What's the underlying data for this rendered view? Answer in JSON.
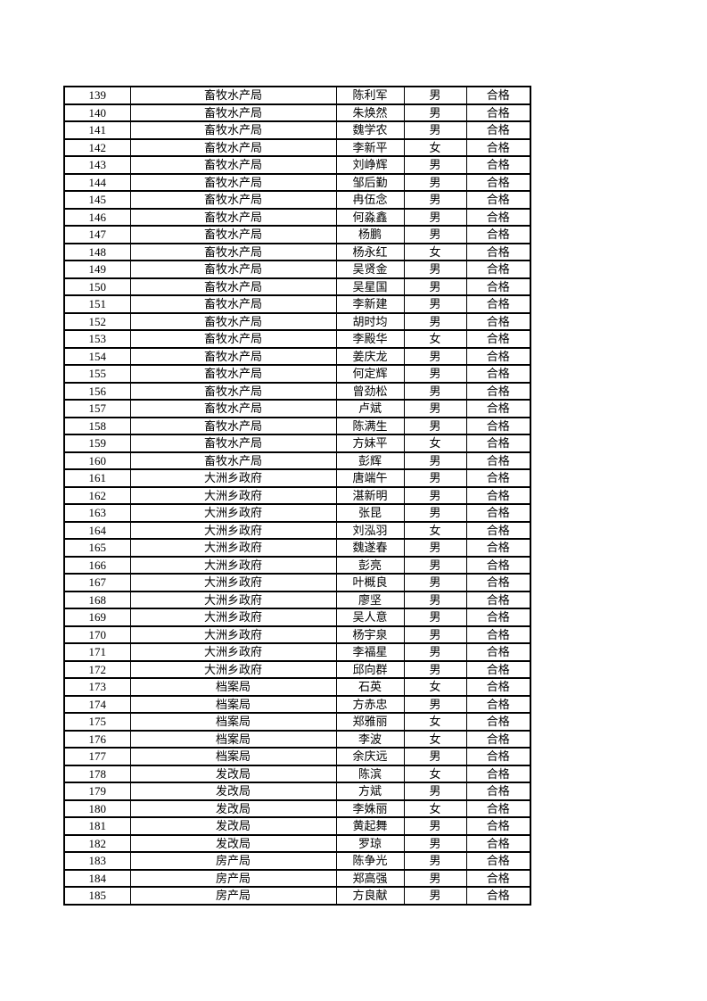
{
  "page": {
    "background_color": "#ffffff",
    "border_color": "#000000",
    "text_color": "#000000"
  },
  "table": {
    "columns": [
      "index",
      "department",
      "name",
      "gender",
      "result"
    ],
    "rows": [
      [
        "139",
        "畜牧水产局",
        "陈利军",
        "男",
        "合格"
      ],
      [
        "140",
        "畜牧水产局",
        "朱焕然",
        "男",
        "合格"
      ],
      [
        "141",
        "畜牧水产局",
        "魏学农",
        "男",
        "合格"
      ],
      [
        "142",
        "畜牧水产局",
        "李新平",
        "女",
        "合格"
      ],
      [
        "143",
        "畜牧水产局",
        "刘峥辉",
        "男",
        "合格"
      ],
      [
        "144",
        "畜牧水产局",
        "邹后勤",
        "男",
        "合格"
      ],
      [
        "145",
        "畜牧水产局",
        "冉伍念",
        "男",
        "合格"
      ],
      [
        "146",
        "畜牧水产局",
        "何淼鑫",
        "男",
        "合格"
      ],
      [
        "147",
        "畜牧水产局",
        "杨鹏",
        "男",
        "合格"
      ],
      [
        "148",
        "畜牧水产局",
        "杨永红",
        "女",
        "合格"
      ],
      [
        "149",
        "畜牧水产局",
        "吴贤金",
        "男",
        "合格"
      ],
      [
        "150",
        "畜牧水产局",
        "吴星国",
        "男",
        "合格"
      ],
      [
        "151",
        "畜牧水产局",
        "李新建",
        "男",
        "合格"
      ],
      [
        "152",
        "畜牧水产局",
        "胡时均",
        "男",
        "合格"
      ],
      [
        "153",
        "畜牧水产局",
        "李殿华",
        "女",
        "合格"
      ],
      [
        "154",
        "畜牧水产局",
        "姜庆龙",
        "男",
        "合格"
      ],
      [
        "155",
        "畜牧水产局",
        "何定辉",
        "男",
        "合格"
      ],
      [
        "156",
        "畜牧水产局",
        "曾劲松",
        "男",
        "合格"
      ],
      [
        "157",
        "畜牧水产局",
        "卢斌",
        "男",
        "合格"
      ],
      [
        "158",
        "畜牧水产局",
        "陈满生",
        "男",
        "合格"
      ],
      [
        "159",
        "畜牧水产局",
        "方妹平",
        "女",
        "合格"
      ],
      [
        "160",
        "畜牧水产局",
        "彭辉",
        "男",
        "合格"
      ],
      [
        "161",
        "大洲乡政府",
        "唐端午",
        "男",
        "合格"
      ],
      [
        "162",
        "大洲乡政府",
        "湛新明",
        "男",
        "合格"
      ],
      [
        "163",
        "大洲乡政府",
        "张昆",
        "男",
        "合格"
      ],
      [
        "164",
        "大洲乡政府",
        "刘泓羽",
        "女",
        "合格"
      ],
      [
        "165",
        "大洲乡政府",
        "魏遂春",
        "男",
        "合格"
      ],
      [
        "166",
        "大洲乡政府",
        "彭亮",
        "男",
        "合格"
      ],
      [
        "167",
        "大洲乡政府",
        "叶概良",
        "男",
        "合格"
      ],
      [
        "168",
        "大洲乡政府",
        "廖坚",
        "男",
        "合格"
      ],
      [
        "169",
        "大洲乡政府",
        "吴人意",
        "男",
        "合格"
      ],
      [
        "170",
        "大洲乡政府",
        "杨宇泉",
        "男",
        "合格"
      ],
      [
        "171",
        "大洲乡政府",
        "李福星",
        "男",
        "合格"
      ],
      [
        "172",
        "大洲乡政府",
        "邱向群",
        "男",
        "合格"
      ],
      [
        "173",
        "档案局",
        "石英",
        "女",
        "合格"
      ],
      [
        "174",
        "档案局",
        "方赤忠",
        "男",
        "合格"
      ],
      [
        "175",
        "档案局",
        "郑雅丽",
        "女",
        "合格"
      ],
      [
        "176",
        "档案局",
        "李波",
        "女",
        "合格"
      ],
      [
        "177",
        "档案局",
        "余庆远",
        "男",
        "合格"
      ],
      [
        "178",
        "发改局",
        "陈滨",
        "女",
        "合格"
      ],
      [
        "179",
        "发改局",
        "方斌",
        "男",
        "合格"
      ],
      [
        "180",
        "发改局",
        "李姝丽",
        "女",
        "合格"
      ],
      [
        "181",
        "发改局",
        "黄起舞",
        "男",
        "合格"
      ],
      [
        "182",
        "发改局",
        "罗琼",
        "男",
        "合格"
      ],
      [
        "183",
        "房产局",
        "陈争光",
        "男",
        "合格"
      ],
      [
        "184",
        "房产局",
        "郑高强",
        "男",
        "合格"
      ],
      [
        "185",
        "房产局",
        "方良献",
        "男",
        "合格"
      ]
    ]
  }
}
